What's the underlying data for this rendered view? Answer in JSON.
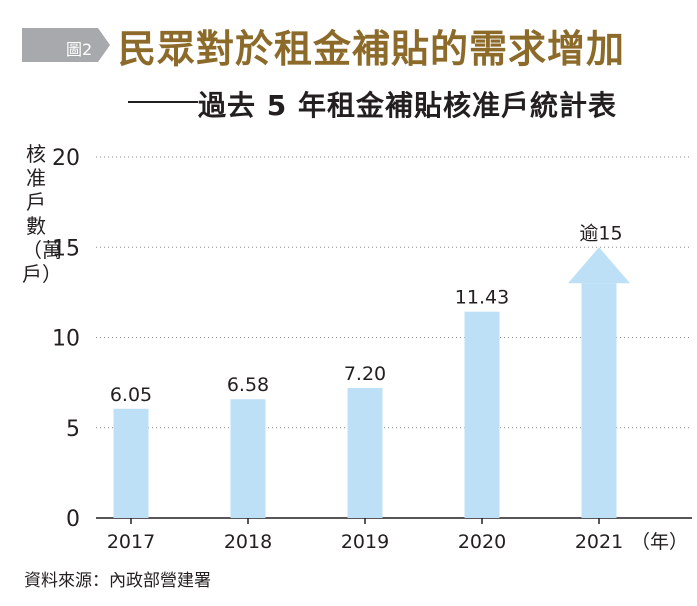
{
  "header": {
    "figure_label": "圖2",
    "title": "民眾對於租金補貼的需求增加",
    "subtitle": "過去 5 年租金補貼核准戶統計表"
  },
  "chart_data": {
    "type": "bar",
    "ylabel": "核准戶數（萬戶）",
    "xlabel": "（年）",
    "ylim": [
      0,
      20
    ],
    "yticks": [
      0,
      5,
      10,
      15,
      20
    ],
    "categories": [
      "2017",
      "2018",
      "2019",
      "2020",
      "2021"
    ],
    "values": [
      6.05,
      6.58,
      7.2,
      11.43,
      15
    ],
    "data_labels": [
      "6.05",
      "6.58",
      "7.20",
      "11.43",
      "逾15"
    ],
    "arrow_on_last": true,
    "grid": "horizontal-dotted"
  },
  "source": "資料來源：內政部營建署",
  "colors": {
    "bar": "#bde0f6",
    "title": "#8c6b2a",
    "tag_bg": "#a7a9ac",
    "text": "#231f20",
    "grid": "#8a8a8a"
  }
}
